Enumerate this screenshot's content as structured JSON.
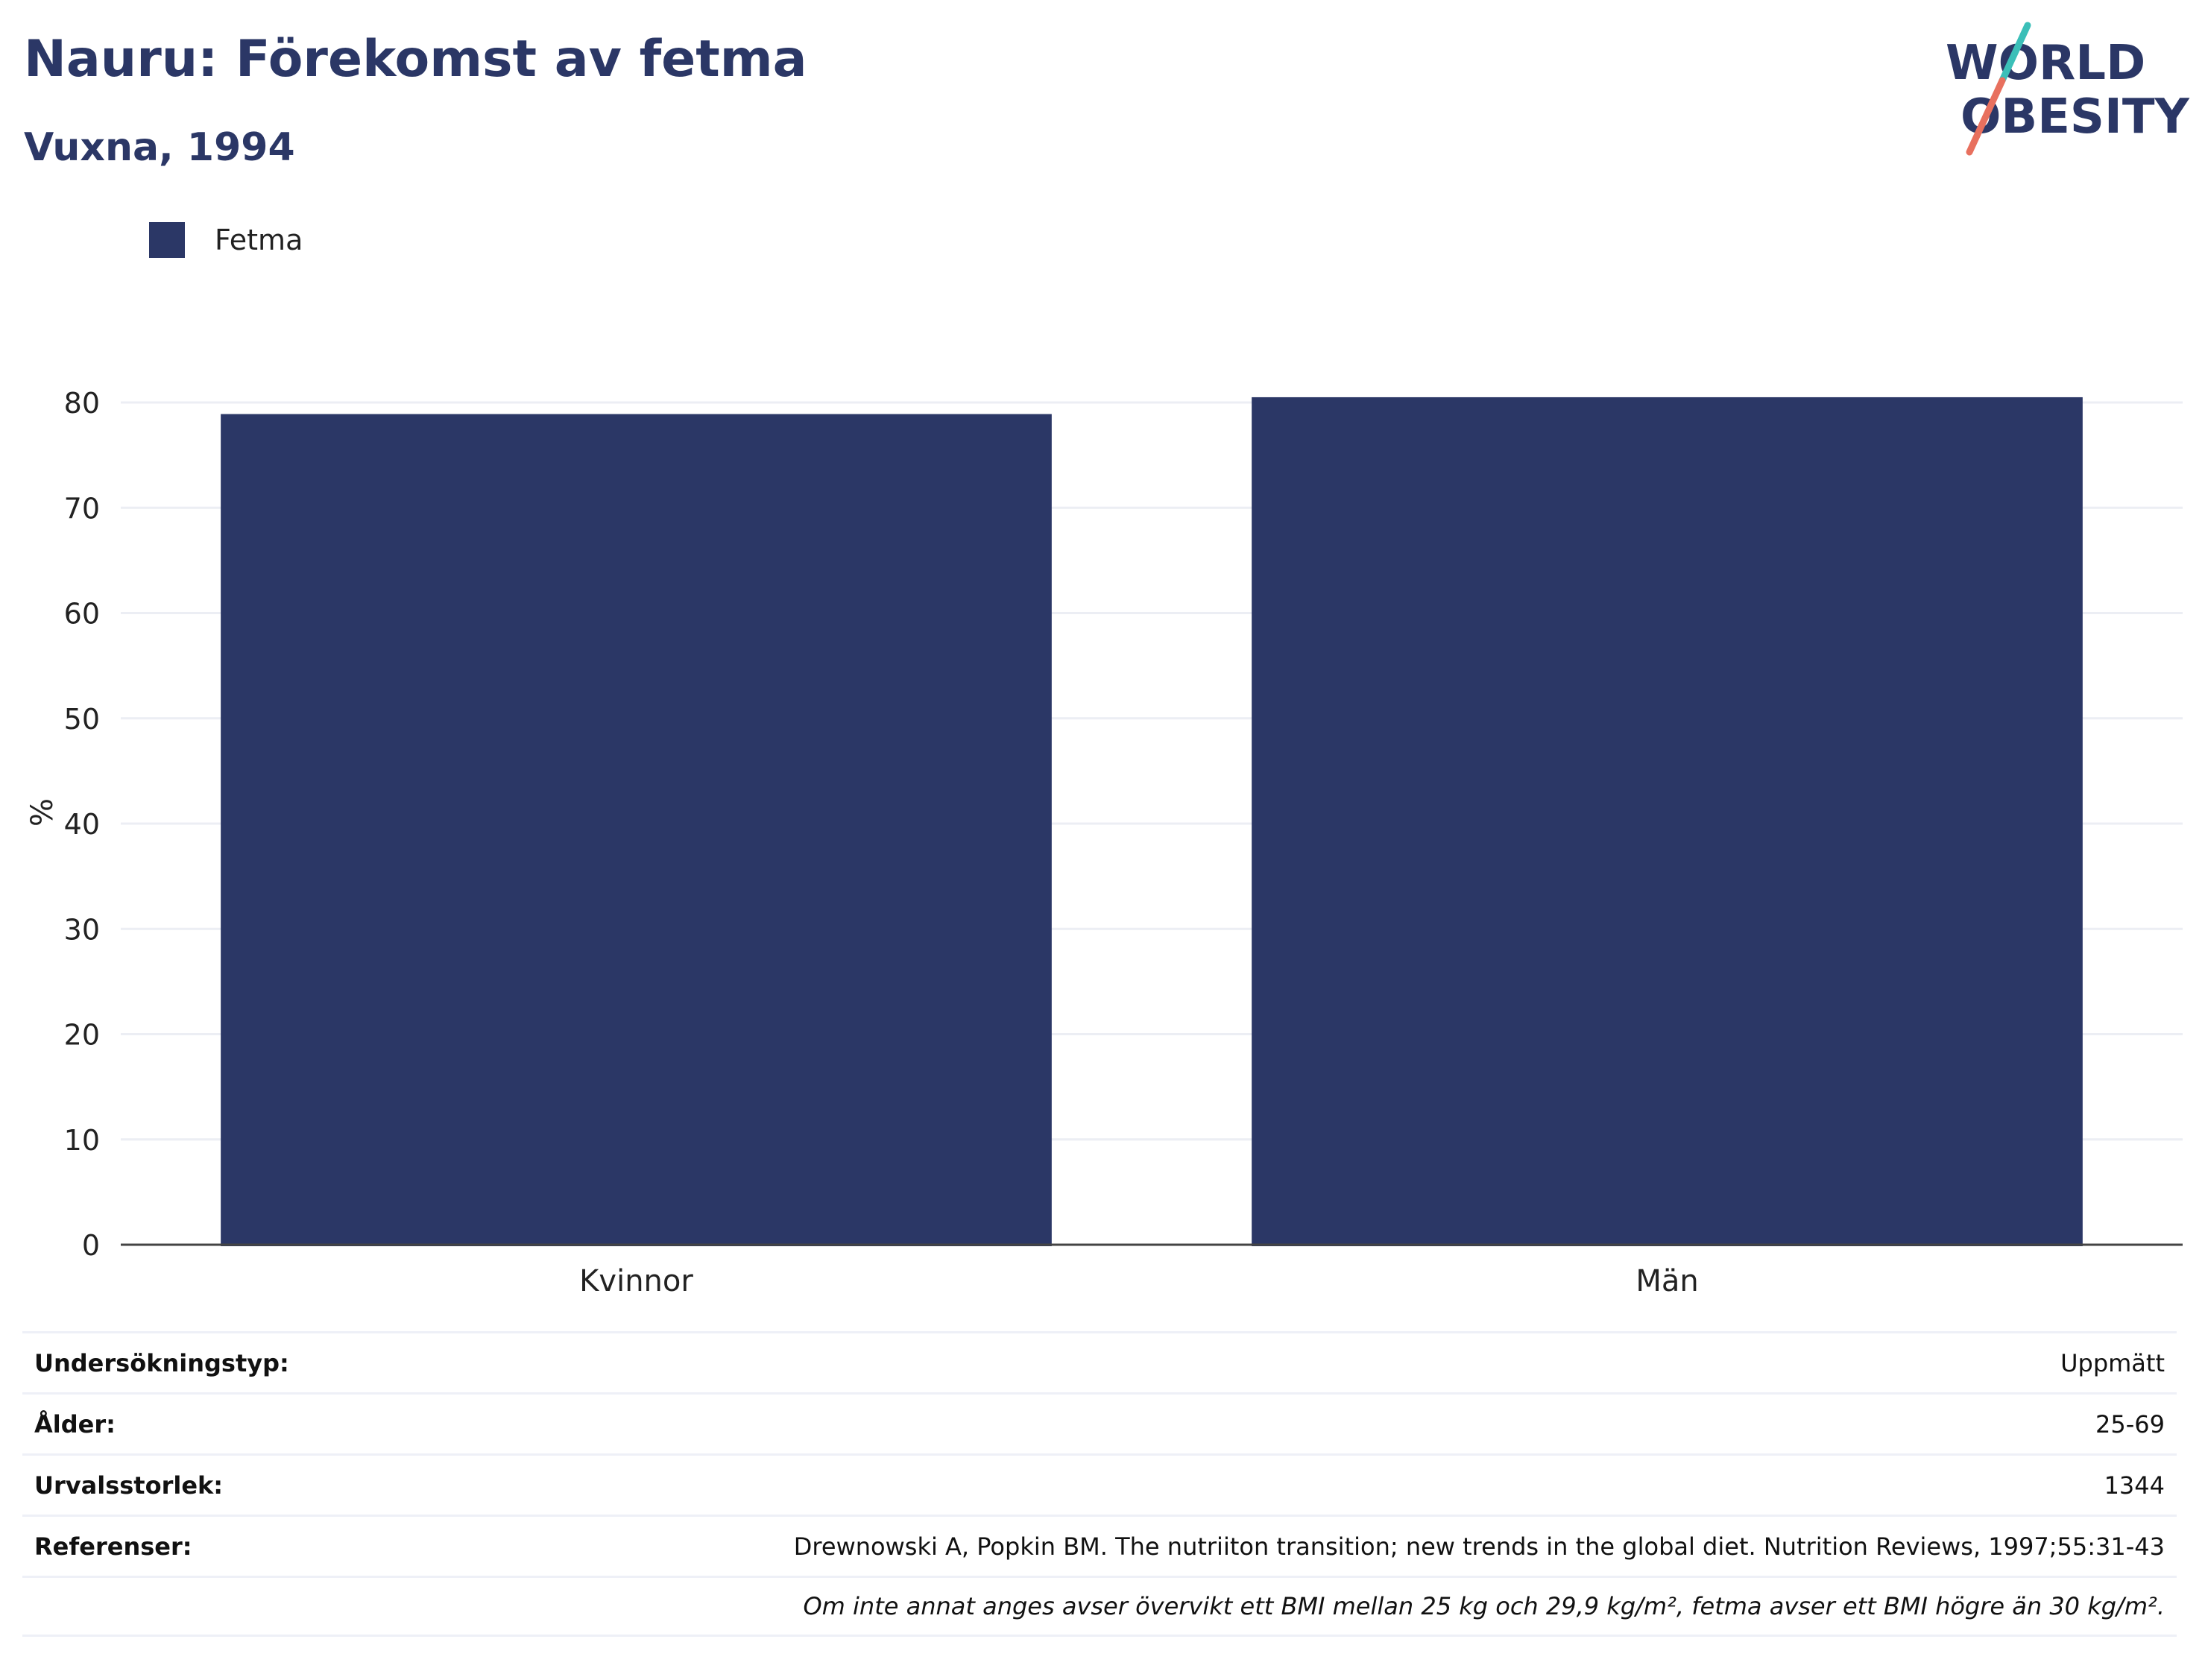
{
  "header": {
    "title": "Nauru: Förekomst av fetma",
    "subtitle": "Vuxna, 1994"
  },
  "logo": {
    "line1": "WORLD",
    "line2": "OBESITY"
  },
  "legend": {
    "label": "Fetma"
  },
  "colors": {
    "bar": "#2b3766",
    "title": "#2b3766",
    "logo_text": "#2b3766",
    "logo_teal": "#3bbfb8",
    "logo_coral": "#e8705e",
    "grid": "#eceef4",
    "axis": "#444444"
  },
  "chart_data": {
    "type": "bar",
    "title": "Nauru: Förekomst av fetma",
    "subtitle": "Vuxna, 1994",
    "categories": [
      "Kvinnor",
      "Män"
    ],
    "series": [
      {
        "name": "Fetma",
        "values": [
          78.9,
          80.5
        ]
      }
    ],
    "xlabel": "",
    "ylabel": "%",
    "ylim": [
      0,
      80
    ],
    "yticks": [
      0,
      10,
      20,
      30,
      40,
      50,
      60,
      70,
      80
    ],
    "ytick_labels": [
      "0",
      "10",
      "20",
      "30",
      "40",
      "50",
      "60",
      "70",
      "80"
    ],
    "grid": true,
    "legend_position": "top-left"
  },
  "meta": {
    "rows": [
      {
        "label": "Undersökningstyp:",
        "value": "Uppmätt"
      },
      {
        "label": "Ålder:",
        "value": "25-69"
      },
      {
        "label": "Urvalsstorlek:",
        "value": "1344"
      },
      {
        "label": "Referenser:",
        "value": "Drewnowski A, Popkin BM. The nutriiton transition; new trends in the global diet. Nutrition Reviews, 1997;55:31-43"
      }
    ],
    "note": "Om inte annat anges avser övervikt ett BMI mellan 25 kg och 29,9 kg/m², fetma avser ett BMI högre än 30 kg/m²."
  }
}
